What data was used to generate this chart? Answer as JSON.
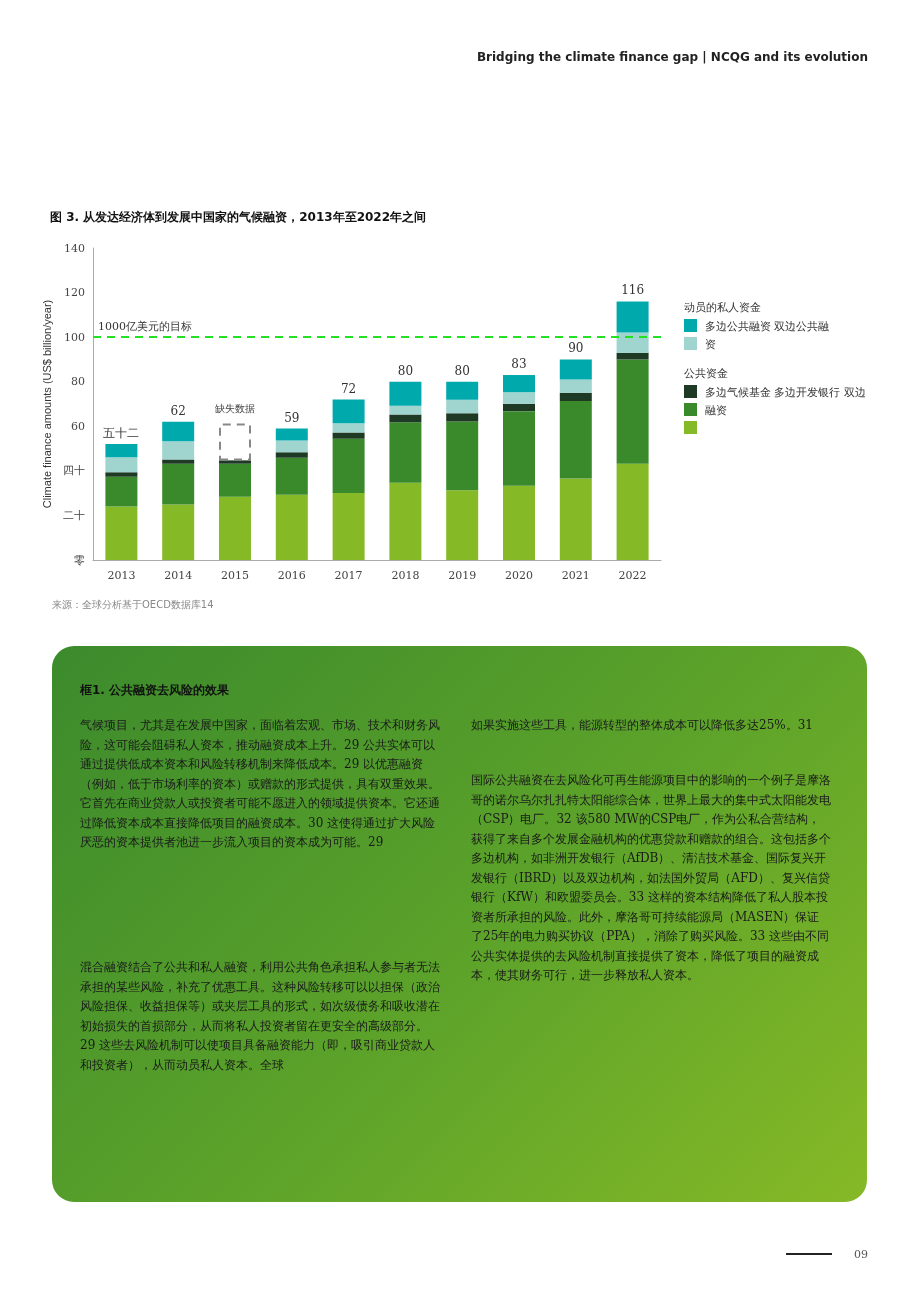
{
  "chart_data": {
    "type": "bar",
    "stacked": true,
    "title": "图 3. 从发达经济体到发展中国家的气候融资，2013年至2022年之间",
    "ylabel": "Climate finance amounts (US$ billion/year)",
    "categories": [
      "2013",
      "2014",
      "2015",
      "2016",
      "2017",
      "2018",
      "2019",
      "2020",
      "2021",
      "2022"
    ],
    "series": [
      {
        "color": "#86b926",
        "values": [
          24,
          24.9,
          28.4,
          29.3,
          30.1,
          34.7,
          31.3,
          33.3,
          36.6,
          43.2
        ]
      },
      {
        "name": "融资",
        "color": "#3a8a2c",
        "values": [
          13.3,
          18.3,
          14.8,
          16.6,
          24.3,
          27.1,
          30.8,
          33.5,
          34.7,
          46.8
        ]
      },
      {
        "name": "多边气候基金 多边开发银行 双边",
        "color": "#1e3a24",
        "values": [
          2.1,
          1.9,
          1.5,
          2.5,
          2.8,
          3.5,
          3.8,
          3.3,
          3.8,
          3.0
        ]
      },
      {
        "name": "资",
        "color": "#9fd4cf",
        "values": [
          6.7,
          8.2,
          null,
          5.2,
          4.2,
          3.9,
          6.0,
          5.2,
          5.9,
          9.1
        ]
      },
      {
        "name": "多边公共融资 双边公共融",
        "color": "#00a9ac",
        "values": [
          5.9,
          8.7,
          null,
          5.4,
          10.6,
          10.8,
          8.1,
          7.7,
          9.0,
          13.9
        ]
      },
      {
        "color": "#888888",
        "line_style": "dashed",
        "values": [
          null,
          null,
          16.5,
          null,
          null,
          null,
          null,
          null,
          null,
          null
        ]
      }
    ],
    "totals": [
      "五十二",
      "62",
      null,
      "59",
      "72",
      "80",
      "80",
      "83",
      "90",
      "116"
    ],
    "ylim": [
      0,
      140
    ],
    "yticks": [
      {
        "value": 0,
        "label": "零"
      },
      {
        "value": 20,
        "label": "二十"
      },
      {
        "value": 40,
        "label": "四十"
      },
      60,
      80,
      100,
      120,
      140
    ],
    "ref_lines": [
      {
        "axis": "y",
        "value": 100,
        "label": "1000亿美元的目标",
        "color": "#22e022",
        "line_style": "dashed"
      }
    ],
    "legend": "right",
    "grid": false,
    "annotations": [
      "Bridging the climate finance gap | NCQG and its evolution",
      "动员的私人资金",
      "公共资金",
      "缺失数据",
      "来源：全球分析基于OECD数据库14",
      "框1. 公共融资去风险的效果",
      "气候项目，尤其是在发展中国家，面临着宏观、市场、技术和财务风险，这可能会阻碍私人资本，推动融资成本上升。29 公共实体可以通过提供低成本资本和风险转移机制来降低成本。29 以优惠融资（例如，低于市场利率的资本）或赠款的形式提供，具有双重效果。它首先在商业贷款人或投资者可能不愿进入的领域提供资本。它还通过降低资本成本直接降低项目的融资成本。30 这使得通过扩大风险厌恶的资本提供者池进一步流入项目的资本成为可能。29",
      "混合融资结合了公共和私人融资，利用公共角色承担私人参与者无法承担的某些风险，补充了优惠工具。这种风险转移可以以担保（政治风险担保、收益担保等）或夹层工具的形式，如次级债务和吸收潜在初始损失的首损部分，从而将私人投资者留在更安全的高级部分。29 这些去风险机制可以使项目具备融资能力（即，吸引商业贷款人和投资者），从而动员私人资本。全球",
      "如果实施这些工具，能源转型的整体成本可以降低多达25%。31",
      "国际公共融资在去风险化可再生能源项目中的影响的一个例子是摩洛哥的诺尔乌尔扎扎特太阳能综合体，世界上最大的集中式太阳能发电（CSP）电厂。32 该580 MW的CSP电厂，作为公私合营结构，获得了来自多个发展金融机构的优惠贷款和赠款的组合。这包括多个多边机构，如非洲开发银行（AfDB）、清洁技术基金、国际复兴开发银行（IBRD）以及双边机构，如法国外贸局（AFD）、复兴信贷银行（KfW）和欧盟委员会。33 这样的资本结构降低了私人股本投资者所承担的风险。此外，摩洛哥可持续能源局（MASEN）保证了25年的电力购买协议（PPA），消除了购买风险。33 这些由不同公共实体提供的去风险机制直接提供了资本，降低了项目的融资成本，使其财务可行，进一步释放私人资本。",
      "09"
    ]
  }
}
